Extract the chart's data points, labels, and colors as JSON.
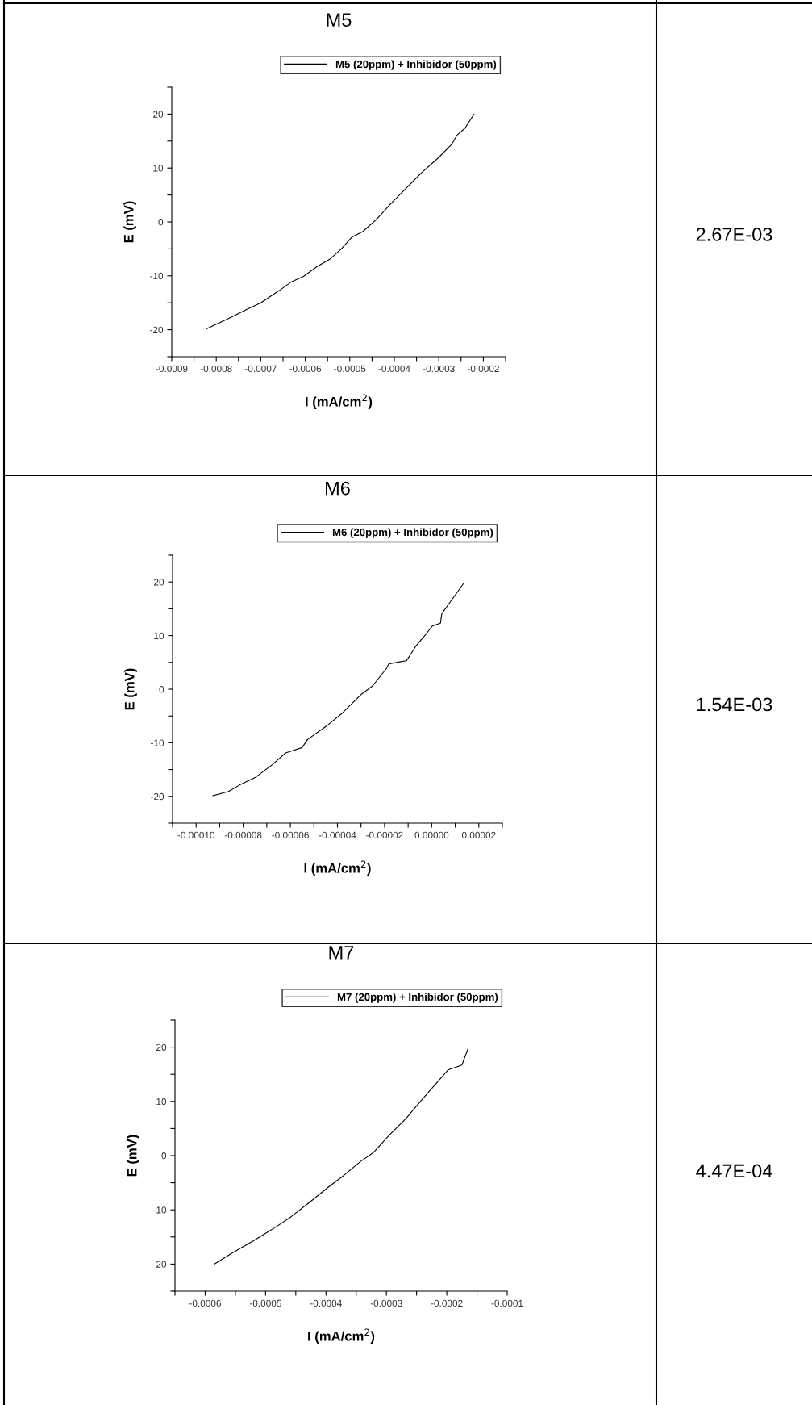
{
  "chart_data": [
    {
      "type": "line",
      "title": "M5",
      "xlabel": "I (mA/cm$^{2}$)",
      "ylabel": "E (mV)",
      "legend": "top",
      "grid": false,
      "xlim": [
        -0.0009,
        -0.00015
      ],
      "ylim": [
        -25,
        25
      ],
      "xticks": [
        -0.0009,
        {
          "value": -0.00085,
          "label": null
        },
        -0.0008,
        {
          "value": -0.00075,
          "label": null
        },
        -0.0007,
        {
          "value": -0.00065,
          "label": null
        },
        -0.0006,
        {
          "value": -0.00055,
          "label": null
        },
        -0.0005,
        {
          "value": -0.00045,
          "label": null
        },
        -0.0004,
        {
          "value": -0.00035,
          "label": null
        },
        -0.0003,
        {
          "value": -0.00025,
          "label": null
        },
        -0.0002,
        {
          "value": -0.00015,
          "label": null
        }
      ],
      "yticks": [
        {
          "value": -25,
          "label": null
        },
        -20,
        {
          "value": -15,
          "label": null
        },
        -10,
        {
          "value": -5,
          "label": null
        },
        0,
        {
          "value": 5,
          "label": null
        },
        10,
        {
          "value": 15,
          "label": null
        },
        20,
        {
          "value": 25,
          "label": null
        }
      ],
      "series": [
        {
          "name": "M5 (20ppm) + Inhibidor (50ppm)",
          "color": "#000000",
          "x": [
            -0.000821,
            -0.000767,
            -0.000731,
            -0.0007,
            -0.000658,
            -0.000631,
            -0.000604,
            -0.000574,
            -0.000543,
            -0.000519,
            -0.000495,
            -0.000471,
            -0.000441,
            -0.00041,
            -0.000374,
            -0.000338,
            -0.000301,
            -0.000271,
            -0.000259,
            -0.000241,
            -0.000221
          ],
          "values": [
            -19.8,
            -17.7,
            -16.2,
            -15.0,
            -12.7,
            -11.1,
            -10.1,
            -8.3,
            -6.8,
            -5.0,
            -2.8,
            -1.8,
            0.4,
            3.2,
            6.2,
            9.2,
            11.9,
            14.4,
            16.1,
            17.4,
            20.0
          ]
        }
      ]
    },
    {
      "type": "other",
      "annotations": [
        "2.67E-03"
      ]
    },
    {
      "type": "line",
      "title": "M6",
      "xlabel": "I (mA/cm$^{2}$)",
      "ylabel": "E (mV)",
      "legend": "top",
      "grid": false,
      "xlim": [
        -0.00011,
        3e-05
      ],
      "ylim": [
        -25,
        25
      ],
      "xticks": [
        {
          "value": -0.00011,
          "label": null
        },
        {
          "value": -0.0001,
          "label": "-0.00010"
        },
        {
          "value": -9e-05,
          "label": null
        },
        {
          "value": -8e-05,
          "label": "-0.00008"
        },
        {
          "value": -7e-05,
          "label": null
        },
        {
          "value": -6e-05,
          "label": "-0.00006"
        },
        {
          "value": -5e-05,
          "label": null
        },
        {
          "value": -4e-05,
          "label": "-0.00004"
        },
        {
          "value": -3e-05,
          "label": null
        },
        {
          "value": -2e-05,
          "label": "-0.00002"
        },
        {
          "value": -1e-05,
          "label": null
        },
        {
          "value": 0,
          "label": "0.00000"
        },
        {
          "value": 1e-05,
          "label": null
        },
        {
          "value": 2e-05,
          "label": "0.00002"
        },
        {
          "value": 3e-05,
          "label": null
        }
      ],
      "yticks": [
        {
          "value": -25,
          "label": null
        },
        -20,
        {
          "value": -15,
          "label": null
        },
        -10,
        {
          "value": -5,
          "label": null
        },
        0,
        {
          "value": 5,
          "label": null
        },
        10,
        {
          "value": 15,
          "label": null
        },
        20,
        {
          "value": 25,
          "label": null
        }
      ],
      "series": [
        {
          "name": "M6 (20ppm) + Inhibidor (50ppm)",
          "color": "#000000",
          "x": [
            -9.29e-05,
            -8.62e-05,
            -8.16e-05,
            -7.46e-05,
            -6.77e-05,
            -6.2e-05,
            -5.5e-05,
            -5.27e-05,
            -4.47e-05,
            -3.78e-05,
            -2.97e-05,
            -2.51e-05,
            -1.93e-05,
            -1.82e-05,
            -1.36e-05,
            -1.07e-05,
            -6.6e-06,
            -2e-06,
            3e-07,
            3.7e-06,
            4.3e-06,
            8.4e-06,
            1.35e-05
          ],
          "values": [
            -19.9,
            -19.1,
            -17.9,
            -16.4,
            -14.1,
            -11.9,
            -10.9,
            -9.4,
            -6.9,
            -4.4,
            -0.9,
            0.6,
            3.8,
            4.7,
            5.1,
            5.3,
            8.1,
            10.5,
            11.8,
            12.3,
            14.1,
            16.6,
            19.7
          ]
        }
      ]
    },
    {
      "type": "other",
      "annotations": [
        "1.54E-03"
      ]
    },
    {
      "type": "line",
      "title": "M7",
      "xlabel": "I (mA/cm$^{2}$)",
      "ylabel": "E (mV)",
      "legend": "top",
      "grid": false,
      "xlim": [
        -0.00065,
        -0.0001
      ],
      "ylim": [
        -25,
        25
      ],
      "xticks": [
        {
          "value": -0.00065,
          "label": null
        },
        -0.0006,
        {
          "value": -0.00055,
          "label": null
        },
        -0.0005,
        {
          "value": -0.00045,
          "label": null
        },
        -0.0004,
        {
          "value": -0.00035,
          "label": null
        },
        -0.0003,
        {
          "value": -0.00025,
          "label": null
        },
        -0.0002,
        {
          "value": -0.00015,
          "label": null
        },
        -0.0001
      ],
      "yticks": [
        {
          "value": -25,
          "label": null
        },
        -20,
        {
          "value": -15,
          "label": null
        },
        -10,
        {
          "value": -5,
          "label": null
        },
        0,
        {
          "value": 5,
          "label": null
        },
        10,
        {
          "value": 15,
          "label": null
        },
        20,
        {
          "value": 25,
          "label": null
        }
      ],
      "series": [
        {
          "name": "M7 (20ppm) + Inhibidor (50ppm)",
          "color": "#000000",
          "x": [
            -0.000585,
            -0.000556,
            -0.00052,
            -0.000485,
            -0.000458,
            -0.000427,
            -0.000396,
            -0.00037,
            -0.000343,
            -0.000321,
            -0.000295,
            -0.000268,
            -0.000242,
            -0.00022,
            -0.000198,
            -0.000175,
            -0.000165
          ],
          "values": [
            -20.0,
            -18.0,
            -15.7,
            -13.3,
            -11.3,
            -8.6,
            -5.8,
            -3.6,
            -1.1,
            0.6,
            3.8,
            6.8,
            10.2,
            13.0,
            15.8,
            16.7,
            19.7
          ]
        }
      ]
    },
    {
      "type": "other",
      "annotations": [
        "4.47E-04"
      ]
    }
  ]
}
